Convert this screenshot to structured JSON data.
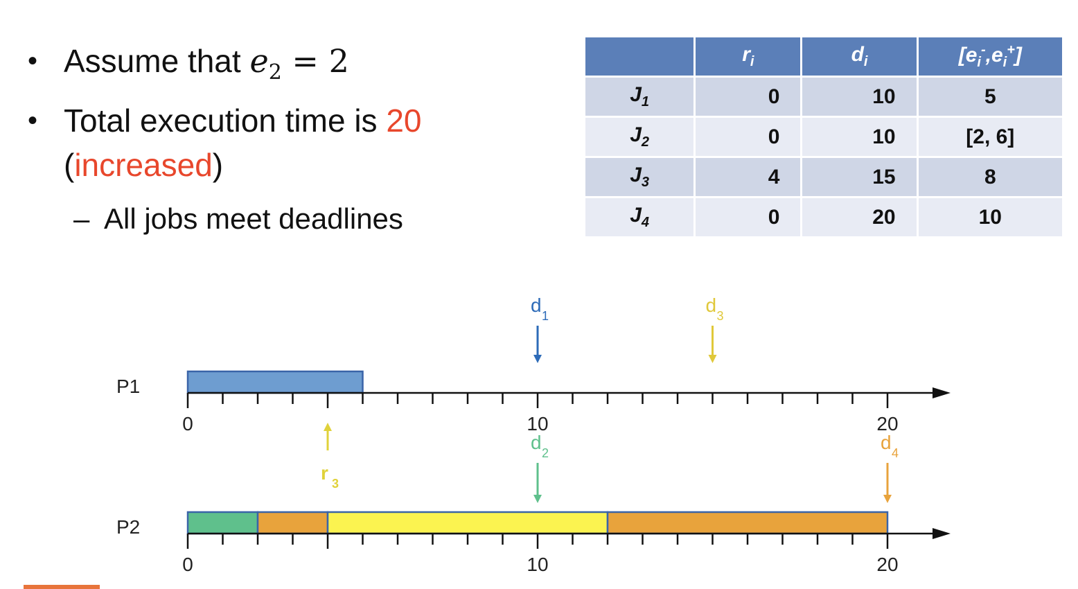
{
  "bullets": {
    "b1_prefix": "Assume that ",
    "b1_var": "e",
    "b1_sub": "2",
    "b1_eq": " = 2",
    "b2_line1_prefix": "Total execution time is ",
    "b2_line1_hl": "20",
    "b2_line2_open": "(",
    "b2_line2_hl": "increased",
    "b2_line2_close": ")",
    "sub_dash": "–",
    "sub_text": "All jobs meet deadlines"
  },
  "table": {
    "headers": [
      "",
      "ri",
      "di",
      "[ei-,ei+]"
    ],
    "rows": [
      {
        "job": "J",
        "sub": "1",
        "r": "0",
        "d": "10",
        "e": "5"
      },
      {
        "job": "J",
        "sub": "2",
        "r": "0",
        "d": "10",
        "e": "[2, 6]"
      },
      {
        "job": "J",
        "sub": "3",
        "r": "4",
        "d": "15",
        "e": "8"
      },
      {
        "job": "J",
        "sub": "4",
        "r": "0",
        "d": "20",
        "e": "10"
      }
    ]
  },
  "colors": {
    "J1": "#6e9dd0",
    "J2": "#5fc08c",
    "J3": "#fbf350",
    "J4": "#e8a33c",
    "d1_arrow": "#2d6bb8",
    "d2_arrow": "#5fc08c",
    "d3_arrow": "#e0c83a",
    "d4_arrow": "#e8a33c",
    "r3_arrow": "#e0d23a",
    "highlight": "#e8472c",
    "table_header": "#5b7fb8"
  },
  "schedule": {
    "tmin": 0,
    "tmax": 20,
    "processors": [
      {
        "label": "P1",
        "tick_labels": [
          "0",
          "10",
          "20"
        ],
        "segments": [
          {
            "job": "J1",
            "start": 0,
            "end": 5
          }
        ]
      },
      {
        "label": "P2",
        "tick_labels": [
          "0",
          "10",
          "20"
        ],
        "segments": [
          {
            "job": "J2",
            "start": 0,
            "end": 2
          },
          {
            "job": "J4",
            "start": 2,
            "end": 4
          },
          {
            "job": "J3",
            "start": 4,
            "end": 12
          },
          {
            "job": "J4",
            "start": 12,
            "end": 20
          }
        ]
      }
    ],
    "markers": [
      {
        "id": "d1",
        "letter": "d",
        "sub": "1",
        "time": 10,
        "processor": 0,
        "kind": "deadline",
        "color": "#2d6bb8"
      },
      {
        "id": "d3",
        "letter": "d",
        "sub": "3",
        "time": 15,
        "processor": 0,
        "kind": "deadline",
        "color": "#e0c83a"
      },
      {
        "id": "r3",
        "letter": "r",
        "sub": "3",
        "time": 4,
        "processor": 0,
        "kind": "release",
        "color": "#e0d23a"
      },
      {
        "id": "d2",
        "letter": "d",
        "sub": "2",
        "time": 10,
        "processor": 1,
        "kind": "deadline",
        "color": "#5fc08c"
      },
      {
        "id": "d4",
        "letter": "d",
        "sub": "4",
        "time": 20,
        "processor": 1,
        "kind": "deadline",
        "color": "#e8a33c"
      }
    ]
  }
}
